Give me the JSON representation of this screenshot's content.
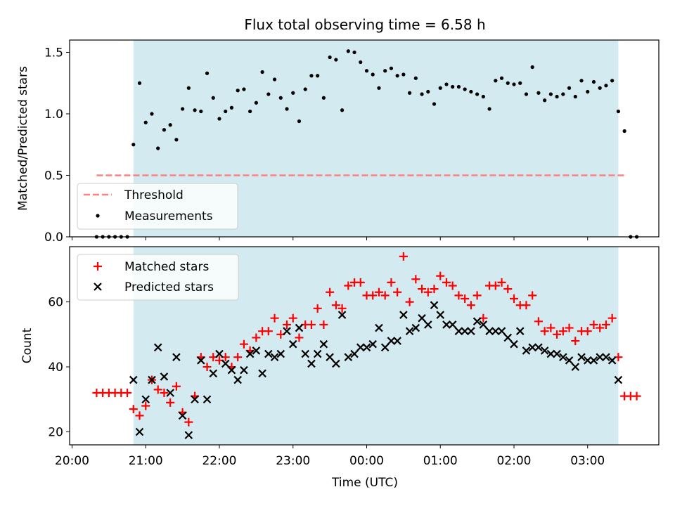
{
  "figure": {
    "title": "Flux total observing time = 6.58 h",
    "shade_color": "#d3eaf0"
  },
  "chart_data": [
    {
      "type": "scatter",
      "panel": "top",
      "ylabel": "Matched/Predicted stars",
      "xlabel": "",
      "xlim": [
        "19:58",
        "03:58"
      ],
      "ylim": [
        0,
        1.6
      ],
      "yticks": [
        0.0,
        0.5,
        1.0,
        1.5
      ],
      "ytick_labels": [
        "0.0",
        "0.5",
        "1.0",
        "1.5"
      ],
      "shaded_interval": [
        "20:50",
        "03:25"
      ],
      "legend_position": "lower left",
      "threshold": {
        "name": "Threshold",
        "value": 0.5,
        "x_range": [
          "20:20",
          "03:30"
        ],
        "color": "#ff8080"
      },
      "measurements": {
        "name": "Measurements",
        "color": "#000000",
        "points": [
          [
            "20:20",
            0
          ],
          [
            "20:25",
            0
          ],
          [
            "20:30",
            0
          ],
          [
            "20:35",
            0
          ],
          [
            "20:40",
            0
          ],
          [
            "20:45",
            0
          ],
          [
            "20:50",
            0.75
          ],
          [
            "20:55",
            1.25
          ],
          [
            "21:00",
            0.93
          ],
          [
            "21:05",
            1.0
          ],
          [
            "21:10",
            0.72
          ],
          [
            "21:15",
            0.87
          ],
          [
            "21:20",
            0.91
          ],
          [
            "21:25",
            0.79
          ],
          [
            "21:30",
            1.04
          ],
          [
            "21:35",
            1.21
          ],
          [
            "21:40",
            1.03
          ],
          [
            "21:45",
            1.02
          ],
          [
            "21:50",
            1.33
          ],
          [
            "21:55",
            1.13
          ],
          [
            "22:00",
            0.96
          ],
          [
            "22:05",
            1.02
          ],
          [
            "22:10",
            1.05
          ],
          [
            "22:15",
            1.19
          ],
          [
            "22:20",
            1.2
          ],
          [
            "22:25",
            1.02
          ],
          [
            "22:30",
            1.09
          ],
          [
            "22:35",
            1.34
          ],
          [
            "22:40",
            1.16
          ],
          [
            "22:45",
            1.28
          ],
          [
            "22:50",
            1.13
          ],
          [
            "22:55",
            1.04
          ],
          [
            "23:00",
            1.17
          ],
          [
            "23:05",
            0.94
          ],
          [
            "23:10",
            1.2
          ],
          [
            "23:15",
            1.31
          ],
          [
            "23:20",
            1.31
          ],
          [
            "23:25",
            1.13
          ],
          [
            "23:30",
            1.46
          ],
          [
            "23:35",
            1.44
          ],
          [
            "23:40",
            1.03
          ],
          [
            "23:45",
            1.51
          ],
          [
            "23:50",
            1.5
          ],
          [
            "23:55",
            1.42
          ],
          [
            "00:00",
            1.35
          ],
          [
            "00:05",
            1.32
          ],
          [
            "00:10",
            1.21
          ],
          [
            "00:15",
            1.35
          ],
          [
            "00:20",
            1.37
          ],
          [
            "00:25",
            1.31
          ],
          [
            "00:30",
            1.32
          ],
          [
            "00:35",
            1.17
          ],
          [
            "00:40",
            1.29
          ],
          [
            "00:45",
            1.16
          ],
          [
            "00:50",
            1.18
          ],
          [
            "00:55",
            1.08
          ],
          [
            "01:00",
            1.21
          ],
          [
            "01:05",
            1.24
          ],
          [
            "01:10",
            1.22
          ],
          [
            "01:15",
            1.22
          ],
          [
            "01:20",
            1.2
          ],
          [
            "01:25",
            1.18
          ],
          [
            "01:30",
            1.16
          ],
          [
            "01:35",
            1.14
          ],
          [
            "01:40",
            1.04
          ],
          [
            "01:45",
            1.27
          ],
          [
            "01:50",
            1.29
          ],
          [
            "01:55",
            1.25
          ],
          [
            "02:00",
            1.24
          ],
          [
            "02:05",
            1.25
          ],
          [
            "02:10",
            1.16
          ],
          [
            "02:15",
            1.38
          ],
          [
            "02:20",
            1.17
          ],
          [
            "02:25",
            1.11
          ],
          [
            "02:30",
            1.16
          ],
          [
            "02:35",
            1.14
          ],
          [
            "02:40",
            1.16
          ],
          [
            "02:45",
            1.21
          ],
          [
            "02:50",
            1.14
          ],
          [
            "02:55",
            1.27
          ],
          [
            "03:00",
            1.18
          ],
          [
            "03:05",
            1.26
          ],
          [
            "03:10",
            1.21
          ],
          [
            "03:15",
            1.23
          ],
          [
            "03:20",
            1.27
          ],
          [
            "03:25",
            1.02
          ],
          [
            "03:30",
            0.86
          ],
          [
            "03:35",
            0
          ],
          [
            "03:40",
            0
          ]
        ]
      }
    },
    {
      "type": "scatter",
      "panel": "bottom",
      "xlabel": "Time (UTC)",
      "ylabel": "Count",
      "xlim": [
        "19:58",
        "03:58"
      ],
      "ylim": [
        16,
        77
      ],
      "yticks": [
        20,
        40,
        60
      ],
      "ytick_labels": [
        "20",
        "40",
        "60"
      ],
      "xticks": [
        "20:00",
        "21:00",
        "22:00",
        "23:00",
        "00:00",
        "01:00",
        "02:00",
        "03:00"
      ],
      "shaded_interval": [
        "20:50",
        "03:25"
      ],
      "legend_position": "upper left",
      "series": [
        {
          "name": "Matched stars",
          "marker": "plus",
          "color": "#ff0000",
          "points": [
            [
              "20:20",
              32
            ],
            [
              "20:25",
              32
            ],
            [
              "20:30",
              32
            ],
            [
              "20:35",
              32
            ],
            [
              "20:40",
              32
            ],
            [
              "20:45",
              32
            ],
            [
              "20:50",
              27
            ],
            [
              "20:55",
              25
            ],
            [
              "21:00",
              28
            ],
            [
              "21:05",
              36
            ],
            [
              "21:10",
              33
            ],
            [
              "21:15",
              32
            ],
            [
              "21:20",
              29
            ],
            [
              "21:25",
              34
            ],
            [
              "21:30",
              26
            ],
            [
              "21:35",
              23
            ],
            [
              "21:40",
              31
            ],
            [
              "21:45",
              43
            ],
            [
              "21:50",
              40
            ],
            [
              "21:55",
              43
            ],
            [
              "22:00",
              42
            ],
            [
              "22:05",
              43
            ],
            [
              "22:10",
              40
            ],
            [
              "22:15",
              43
            ],
            [
              "22:20",
              47
            ],
            [
              "22:25",
              45
            ],
            [
              "22:30",
              49
            ],
            [
              "22:35",
              51
            ],
            [
              "22:40",
              51
            ],
            [
              "22:45",
              55
            ],
            [
              "22:50",
              50
            ],
            [
              "22:55",
              53
            ],
            [
              "23:00",
              55
            ],
            [
              "23:05",
              49
            ],
            [
              "23:10",
              53
            ],
            [
              "23:15",
              53
            ],
            [
              "23:20",
              58
            ],
            [
              "23:25",
              53
            ],
            [
              "23:30",
              63
            ],
            [
              "23:35",
              59
            ],
            [
              "23:40",
              58
            ],
            [
              "23:45",
              65
            ],
            [
              "23:50",
              66
            ],
            [
              "23:55",
              66
            ],
            [
              "00:00",
              62
            ],
            [
              "00:05",
              62
            ],
            [
              "00:10",
              63
            ],
            [
              "00:15",
              62
            ],
            [
              "00:20",
              66
            ],
            [
              "00:25",
              63
            ],
            [
              "00:30",
              74
            ],
            [
              "00:35",
              60
            ],
            [
              "00:40",
              67
            ],
            [
              "00:45",
              64
            ],
            [
              "00:50",
              63
            ],
            [
              "00:55",
              64
            ],
            [
              "01:00",
              68
            ],
            [
              "01:05",
              66
            ],
            [
              "01:10",
              65
            ],
            [
              "01:15",
              62
            ],
            [
              "01:20",
              61
            ],
            [
              "01:25",
              59
            ],
            [
              "01:30",
              62
            ],
            [
              "01:35",
              55
            ],
            [
              "01:40",
              65
            ],
            [
              "01:45",
              65
            ],
            [
              "01:50",
              66
            ],
            [
              "01:55",
              64
            ],
            [
              "02:00",
              61
            ],
            [
              "02:05",
              59
            ],
            [
              "02:10",
              59
            ],
            [
              "02:15",
              62
            ],
            [
              "02:20",
              54
            ],
            [
              "02:25",
              51
            ],
            [
              "02:30",
              52
            ],
            [
              "02:35",
              50
            ],
            [
              "02:40",
              51
            ],
            [
              "02:45",
              52
            ],
            [
              "02:50",
              48
            ],
            [
              "02:55",
              51
            ],
            [
              "03:00",
              51
            ],
            [
              "03:05",
              53
            ],
            [
              "03:10",
              52
            ],
            [
              "03:15",
              53
            ],
            [
              "03:20",
              55
            ],
            [
              "03:25",
              43
            ],
            [
              "03:30",
              31
            ],
            [
              "03:35",
              31
            ],
            [
              "03:40",
              31
            ]
          ]
        },
        {
          "name": "Predicted stars",
          "marker": "x",
          "color": "#000000",
          "points": [
            [
              "20:50",
              36
            ],
            [
              "20:55",
              20
            ],
            [
              "21:00",
              30
            ],
            [
              "21:05",
              36
            ],
            [
              "21:10",
              46
            ],
            [
              "21:15",
              37
            ],
            [
              "21:20",
              32
            ],
            [
              "21:25",
              43
            ],
            [
              "21:30",
              25
            ],
            [
              "21:35",
              19
            ],
            [
              "21:40",
              30
            ],
            [
              "21:45",
              42
            ],
            [
              "21:50",
              30
            ],
            [
              "21:55",
              38
            ],
            [
              "22:00",
              44
            ],
            [
              "22:05",
              41
            ],
            [
              "22:10",
              39
            ],
            [
              "22:15",
              36
            ],
            [
              "22:20",
              39
            ],
            [
              "22:25",
              44
            ],
            [
              "22:30",
              45
            ],
            [
              "22:35",
              38
            ],
            [
              "22:40",
              44
            ],
            [
              "22:45",
              43
            ],
            [
              "22:50",
              44
            ],
            [
              "22:55",
              51
            ],
            [
              "23:00",
              47
            ],
            [
              "23:05",
              52
            ],
            [
              "23:10",
              44
            ],
            [
              "23:15",
              41
            ],
            [
              "23:20",
              44
            ],
            [
              "23:25",
              47
            ],
            [
              "23:30",
              43
            ],
            [
              "23:35",
              41
            ],
            [
              "23:40",
              56
            ],
            [
              "23:45",
              43
            ],
            [
              "23:50",
              44
            ],
            [
              "23:55",
              46
            ],
            [
              "00:00",
              46
            ],
            [
              "00:05",
              47
            ],
            [
              "00:10",
              52
            ],
            [
              "00:15",
              46
            ],
            [
              "00:20",
              48
            ],
            [
              "00:25",
              48
            ],
            [
              "00:30",
              56
            ],
            [
              "00:35",
              51
            ],
            [
              "00:40",
              52
            ],
            [
              "00:45",
              55
            ],
            [
              "00:50",
              53
            ],
            [
              "00:55",
              59
            ],
            [
              "01:00",
              56
            ],
            [
              "01:05",
              53
            ],
            [
              "01:10",
              53
            ],
            [
              "01:15",
              51
            ],
            [
              "01:20",
              51
            ],
            [
              "01:25",
              51
            ],
            [
              "01:30",
              54
            ],
            [
              "01:35",
              53
            ],
            [
              "01:40",
              51
            ],
            [
              "01:45",
              51
            ],
            [
              "01:50",
              51
            ],
            [
              "01:55",
              49
            ],
            [
              "02:00",
              47
            ],
            [
              "02:05",
              51
            ],
            [
              "02:10",
              45
            ],
            [
              "02:15",
              46
            ],
            [
              "02:20",
              46
            ],
            [
              "02:25",
              45
            ],
            [
              "02:30",
              44
            ],
            [
              "02:35",
              44
            ],
            [
              "02:40",
              43
            ],
            [
              "02:45",
              42
            ],
            [
              "02:50",
              40
            ],
            [
              "02:55",
              43
            ],
            [
              "03:00",
              42
            ],
            [
              "03:05",
              42
            ],
            [
              "03:10",
              43
            ],
            [
              "03:15",
              43
            ],
            [
              "03:20",
              42
            ],
            [
              "03:25",
              36
            ]
          ]
        }
      ]
    }
  ]
}
